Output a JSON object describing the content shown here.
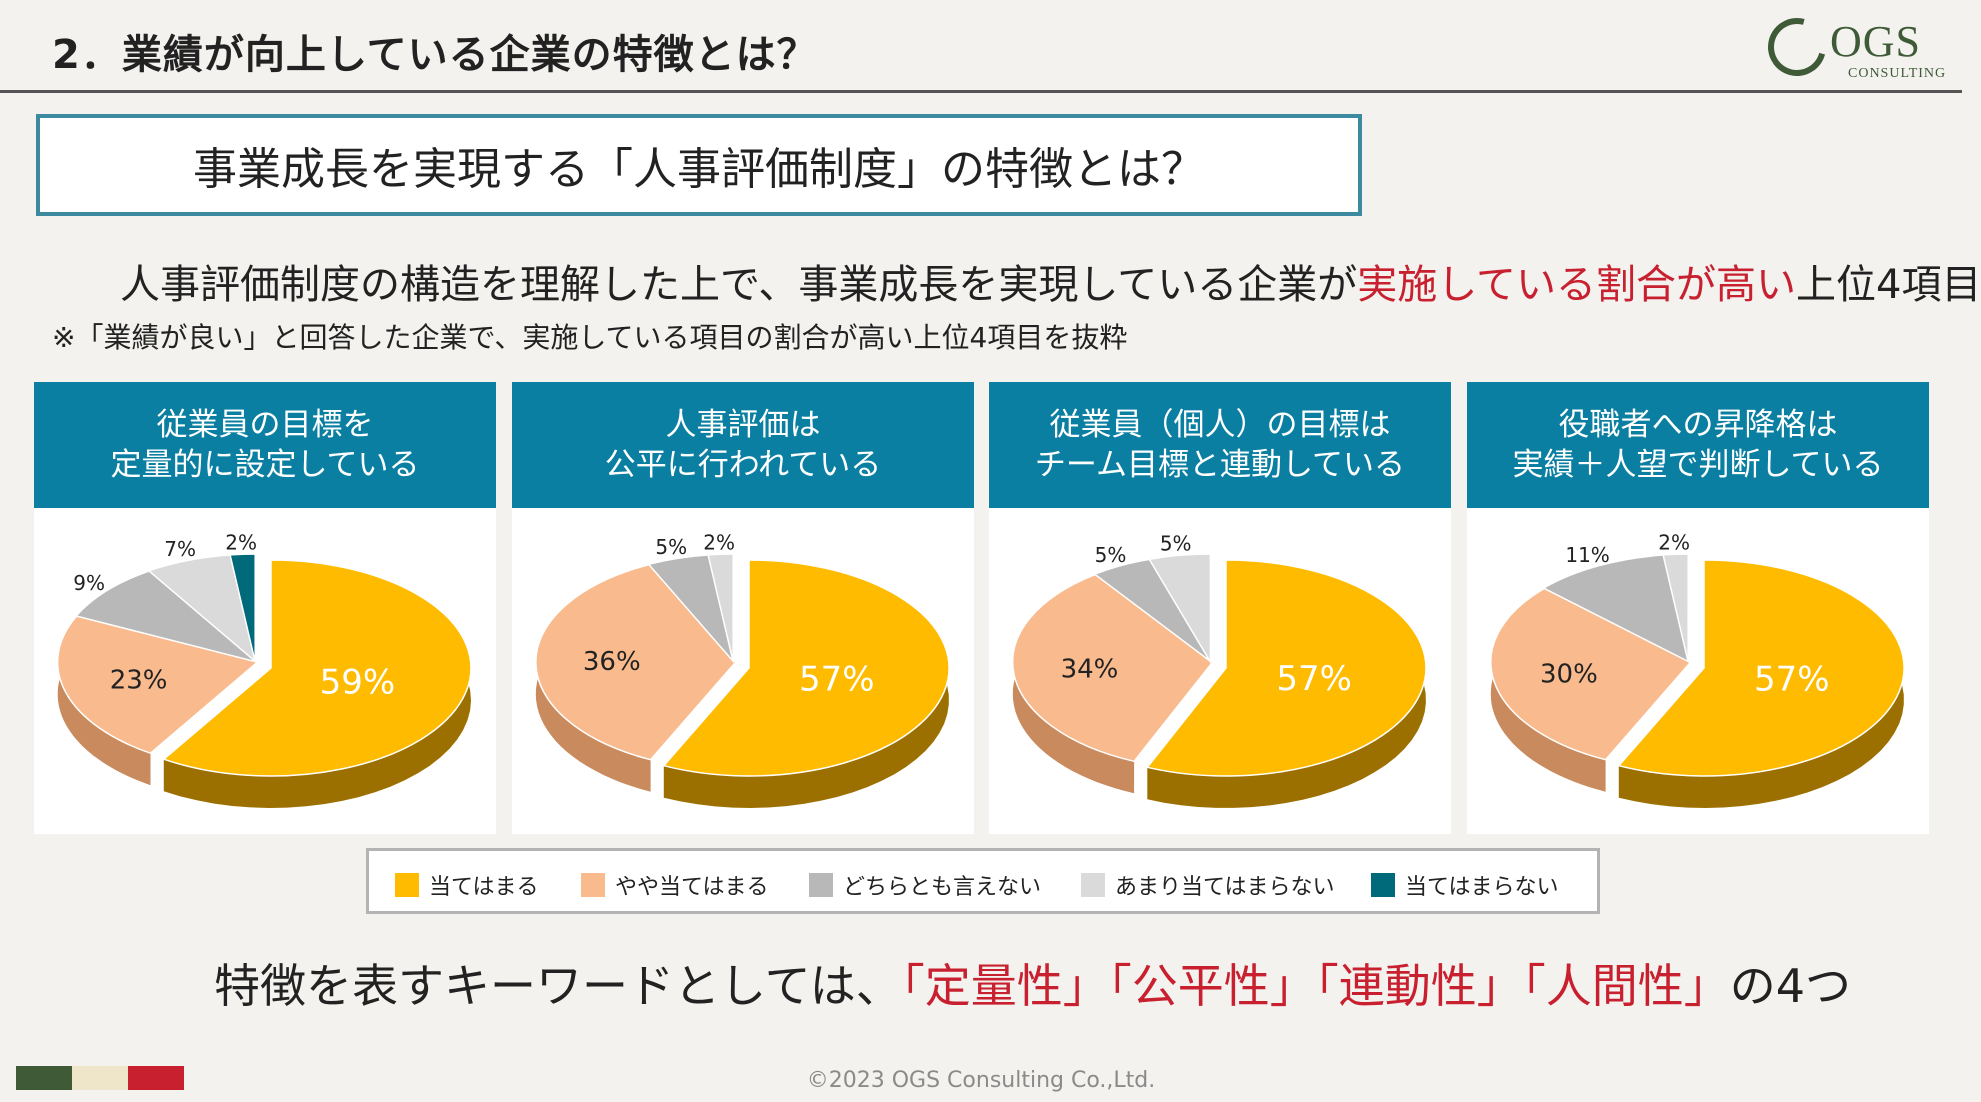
{
  "slide_title": "2．業績が向上している企業の特徴とは？",
  "logo": {
    "text": "OGS",
    "sub": "CONSULTING"
  },
  "box_title": "事業成長を実現する「人事評価制度」の特徴とは？",
  "lead": {
    "before": "人事評価制度の構造を理解した上で、事業成長を実現している企業が",
    "highlight": "実施している割合が高い",
    "after": "上位4項目"
  },
  "note": "※「業績が良い」と回答した企業で、実施している項目の割合が高い上位4項目を抜粋",
  "colors": {
    "header_bg": "#0a7fa2",
    "accent_red": "#c8202f",
    "frame_teal": "#3b8aa0",
    "slices": [
      "#ffbb00",
      "#f9bb8e",
      "#b8b8b8",
      "#dadada",
      "#006a7a"
    ],
    "slices_side": [
      "#9c7000",
      "#c98a5d",
      "#8a8a8a",
      "#a8a8a8",
      "#004550"
    ],
    "footer": [
      "#3e5a36",
      "#efe6c9",
      "#c8202f"
    ]
  },
  "chart_data": [
    {
      "type": "pie",
      "title_lines": [
        "従業員の目標を",
        "定量的に設定している"
      ],
      "categories": [
        "当てはまる",
        "やや当てはまる",
        "どちらとも言えない",
        "あまり当てはまらない",
        "当てはまらない"
      ],
      "values": [
        59,
        23,
        9,
        7,
        2
      ],
      "labels": [
        "59%",
        "23%",
        "9%",
        "7%",
        "2%"
      ]
    },
    {
      "type": "pie",
      "title_lines": [
        "人事評価は",
        "公平に行われている"
      ],
      "categories": [
        "当てはまる",
        "やや当てはまる",
        "どちらとも言えない",
        "あまり当てはまらない",
        "当てはまらない"
      ],
      "values": [
        57,
        36,
        5,
        2,
        0
      ],
      "labels": [
        "57%",
        "36%",
        "5%",
        "2%",
        ""
      ]
    },
    {
      "type": "pie",
      "title_lines": [
        "従業員（個人）の目標は",
        "チーム目標と連動している"
      ],
      "categories": [
        "当てはまる",
        "やや当てはまる",
        "どちらとも言えない",
        "あまり当てはまらない",
        "当てはまらない"
      ],
      "values": [
        57,
        34,
        5,
        5,
        0
      ],
      "labels": [
        "57%",
        "34%",
        "5%",
        "5%",
        ""
      ]
    },
    {
      "type": "pie",
      "title_lines": [
        "役職者への昇降格は",
        "実績＋人望で判断している"
      ],
      "categories": [
        "当てはまる",
        "やや当てはまる",
        "どちらとも言えない",
        "あまり当てはまらない",
        "当てはまらない"
      ],
      "values": [
        57,
        30,
        11,
        2,
        0
      ],
      "labels": [
        "57%",
        "30%",
        "11%",
        "2%",
        ""
      ]
    }
  ],
  "legend": [
    "当てはまる",
    "やや当てはまる",
    "どちらとも言えない",
    "あまり当てはまらない",
    "当てはまらない"
  ],
  "bottom_line": {
    "before": "特徴を表すキーワードとしては、",
    "keywords": "「定量性」「公平性」「連動性」「人間性」",
    "after": "の4つ"
  },
  "copyright": "©2023 OGS Consulting Co.,Ltd."
}
